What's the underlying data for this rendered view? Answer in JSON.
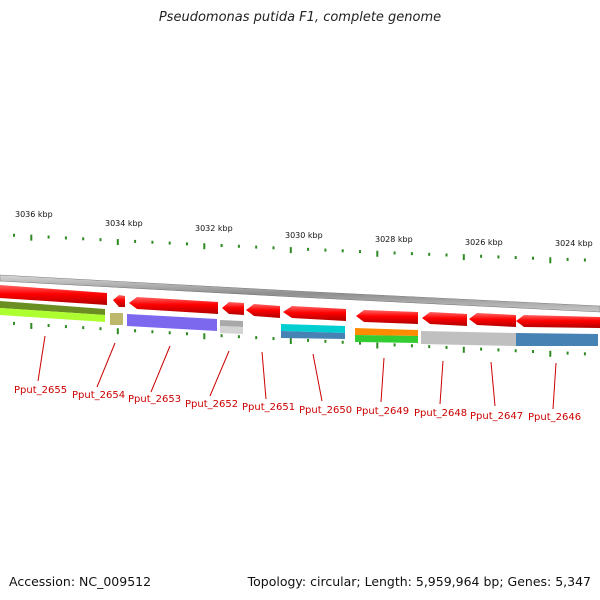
{
  "title": "Pseudomonas putida F1, complete genome",
  "footer": {
    "accession": "Accession: NC_009512",
    "summary": "Topology: circular; Length: 5,959,964 bp; Genes: 5,347"
  },
  "ruler": {
    "labels": [
      "3036 kbp",
      "3034 kbp",
      "3032 kbp",
      "3030 kbp",
      "3028 kbp",
      "3026 kbp",
      "3024 kbp"
    ]
  },
  "genes": [
    {
      "label": "Pput_2655",
      "color": "#ff0000",
      "lower_colors": [
        "#6b8e23",
        "#adff2f"
      ]
    },
    {
      "label": "Pput_2654",
      "color": "#ff0000",
      "lower_colors": [
        "#bdb76b"
      ]
    },
    {
      "label": "Pput_2653",
      "color": "#ff0000",
      "lower_colors": [
        "#7b68ee"
      ]
    },
    {
      "label": "Pput_2652",
      "color": "#ff0000",
      "lower_colors": [
        "#a9a9a9",
        "#d3d3d3"
      ]
    },
    {
      "label": "Pput_2651",
      "color": "#ff0000",
      "lower_colors": []
    },
    {
      "label": "Pput_2650",
      "color": "#ff0000",
      "lower_colors": [
        "#00ced1",
        "#4682b4"
      ]
    },
    {
      "label": "Pput_2649",
      "color": "#ff0000",
      "lower_colors": [
        "#ff8c00",
        "#32cd32"
      ]
    },
    {
      "label": "Pput_2648",
      "color": "#ff0000",
      "lower_colors": [
        "#c0c0c0"
      ]
    },
    {
      "label": "Pput_2647",
      "color": "#ff0000",
      "lower_colors": [
        "#c0c0c0"
      ]
    },
    {
      "label": "Pput_2646",
      "color": "#ff0000",
      "lower_colors": [
        "#4682b4"
      ]
    }
  ],
  "colors": {
    "backbone": "#9a9a9a",
    "tick": "#2e8b22",
    "label_line": "#cc0000"
  }
}
